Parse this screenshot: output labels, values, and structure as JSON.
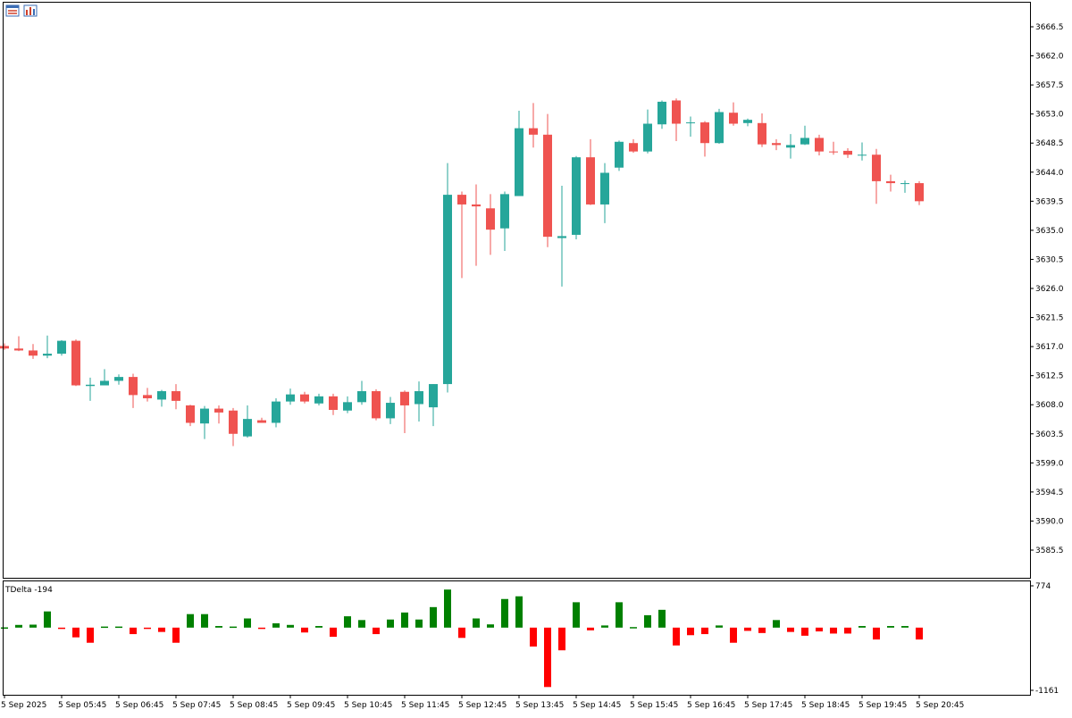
{
  "toolbar": {
    "icons": [
      "chart-properties-icon",
      "indicator-list-icon"
    ]
  },
  "indicator": {
    "label": "TDelta -194"
  },
  "colors": {
    "bull": "#26a69a",
    "bear": "#ef5350",
    "delta_pos": "#008000",
    "delta_neg": "#ff0000",
    "frame": "#000000",
    "background": "#ffffff"
  },
  "chart_data": [
    {
      "type": "candlestick",
      "title": "",
      "ylim": [
        3580.5,
        3670.0
      ],
      "y_ticks": [
        "3666.5",
        "3662.0",
        "3657.5",
        "3653.0",
        "3648.5",
        "3644.0",
        "3639.5",
        "3635.0",
        "3630.5",
        "3626.0",
        "3621.5",
        "3617.0",
        "3612.5",
        "3608.0",
        "3603.5",
        "3599.0",
        "3594.5",
        "3590.0",
        "3585.5"
      ],
      "x_ticks": [
        "5 Sep 2025",
        "5 Sep 05:45",
        "5 Sep 06:45",
        "5 Sep 07:45",
        "5 Sep 08:45",
        "5 Sep 09:45",
        "5 Sep 10:45",
        "5 Sep 11:45",
        "5 Sep 12:45",
        "5 Sep 13:45",
        "5 Sep 14:45",
        "5 Sep 15:45",
        "5 Sep 16:45",
        "5 Sep 17:45",
        "5 Sep 18:45",
        "5 Sep 19:45",
        "5 Sep 20:45"
      ],
      "candles": [
        {
          "o": 3617.1,
          "h": 3617.5,
          "l": 3616.5,
          "c": 3616.7
        },
        {
          "o": 3616.7,
          "h": 3618.6,
          "l": 3616.3,
          "c": 3616.4
        },
        {
          "o": 3616.4,
          "h": 3617.4,
          "l": 3615.1,
          "c": 3615.6
        },
        {
          "o": 3615.6,
          "h": 3618.7,
          "l": 3615.2,
          "c": 3615.9
        },
        {
          "o": 3615.9,
          "h": 3618.0,
          "l": 3615.6,
          "c": 3617.9
        },
        {
          "o": 3617.9,
          "h": 3618.1,
          "l": 3610.9,
          "c": 3611.0
        },
        {
          "o": 3610.9,
          "h": 3612.2,
          "l": 3608.6,
          "c": 3611.1
        },
        {
          "o": 3611.0,
          "h": 3613.5,
          "l": 3611.0,
          "c": 3611.7
        },
        {
          "o": 3611.7,
          "h": 3612.7,
          "l": 3611.1,
          "c": 3612.3
        },
        {
          "o": 3612.3,
          "h": 3612.8,
          "l": 3607.5,
          "c": 3609.5
        },
        {
          "o": 3609.5,
          "h": 3610.6,
          "l": 3608.5,
          "c": 3609.0
        },
        {
          "o": 3608.8,
          "h": 3610.3,
          "l": 3607.7,
          "c": 3610.1
        },
        {
          "o": 3610.1,
          "h": 3611.2,
          "l": 3607.3,
          "c": 3608.6
        },
        {
          "o": 3607.9,
          "h": 3608.0,
          "l": 3604.7,
          "c": 3605.2
        },
        {
          "o": 3605.1,
          "h": 3607.8,
          "l": 3602.7,
          "c": 3607.4
        },
        {
          "o": 3607.4,
          "h": 3607.9,
          "l": 3605.1,
          "c": 3606.8
        },
        {
          "o": 3607.1,
          "h": 3607.5,
          "l": 3601.6,
          "c": 3603.5
        },
        {
          "o": 3603.1,
          "h": 3607.9,
          "l": 3602.9,
          "c": 3605.8
        },
        {
          "o": 3605.6,
          "h": 3606.0,
          "l": 3605.2,
          "c": 3605.2
        },
        {
          "o": 3605.2,
          "h": 3609.0,
          "l": 3604.5,
          "c": 3608.5
        },
        {
          "o": 3608.5,
          "h": 3610.5,
          "l": 3608.0,
          "c": 3609.6
        },
        {
          "o": 3609.6,
          "h": 3610.0,
          "l": 3608.2,
          "c": 3608.5
        },
        {
          "o": 3608.2,
          "h": 3609.7,
          "l": 3607.9,
          "c": 3609.3
        },
        {
          "o": 3609.3,
          "h": 3609.7,
          "l": 3606.4,
          "c": 3607.2
        },
        {
          "o": 3607.1,
          "h": 3609.3,
          "l": 3606.7,
          "c": 3608.4
        },
        {
          "o": 3608.4,
          "h": 3611.7,
          "l": 3608.0,
          "c": 3610.1
        },
        {
          "o": 3610.1,
          "h": 3610.4,
          "l": 3605.6,
          "c": 3605.9
        },
        {
          "o": 3605.9,
          "h": 3609.2,
          "l": 3605.0,
          "c": 3608.3
        },
        {
          "o": 3610.0,
          "h": 3610.2,
          "l": 3603.6,
          "c": 3607.9
        },
        {
          "o": 3608.1,
          "h": 3611.6,
          "l": 3605.4,
          "c": 3610.1
        },
        {
          "o": 3607.6,
          "h": 3611.2,
          "l": 3604.7,
          "c": 3611.2
        },
        {
          "o": 3611.2,
          "h": 3645.4,
          "l": 3609.9,
          "c": 3640.5
        },
        {
          "o": 3640.5,
          "h": 3641.0,
          "l": 3627.6,
          "c": 3639.0
        },
        {
          "o": 3639.0,
          "h": 3642.1,
          "l": 3629.5,
          "c": 3638.7
        },
        {
          "o": 3638.4,
          "h": 3640.6,
          "l": 3631.2,
          "c": 3635.1
        },
        {
          "o": 3635.3,
          "h": 3641.0,
          "l": 3631.8,
          "c": 3640.6
        },
        {
          "o": 3640.3,
          "h": 3653.5,
          "l": 3640.3,
          "c": 3650.8
        },
        {
          "o": 3650.8,
          "h": 3654.7,
          "l": 3647.8,
          "c": 3649.8
        },
        {
          "o": 3649.8,
          "h": 3653.0,
          "l": 3632.4,
          "c": 3634.0
        },
        {
          "o": 3633.8,
          "h": 3641.9,
          "l": 3626.3,
          "c": 3634.1
        },
        {
          "o": 3634.3,
          "h": 3646.5,
          "l": 3633.6,
          "c": 3646.3
        },
        {
          "o": 3646.3,
          "h": 3649.1,
          "l": 3638.9,
          "c": 3639.0
        },
        {
          "o": 3639.0,
          "h": 3645.4,
          "l": 3636.1,
          "c": 3643.9
        },
        {
          "o": 3644.7,
          "h": 3648.9,
          "l": 3644.2,
          "c": 3648.7
        },
        {
          "o": 3648.5,
          "h": 3649.1,
          "l": 3647.0,
          "c": 3647.2
        },
        {
          "o": 3647.2,
          "h": 3653.7,
          "l": 3646.9,
          "c": 3651.5
        },
        {
          "o": 3651.4,
          "h": 3655.1,
          "l": 3650.7,
          "c": 3654.9
        },
        {
          "o": 3655.1,
          "h": 3655.4,
          "l": 3648.8,
          "c": 3651.5
        },
        {
          "o": 3651.7,
          "h": 3652.6,
          "l": 3649.5,
          "c": 3651.7
        },
        {
          "o": 3651.7,
          "h": 3651.9,
          "l": 3646.4,
          "c": 3648.5
        },
        {
          "o": 3648.5,
          "h": 3653.8,
          "l": 3648.4,
          "c": 3653.3
        },
        {
          "o": 3653.2,
          "h": 3654.8,
          "l": 3651.2,
          "c": 3651.5
        },
        {
          "o": 3651.6,
          "h": 3652.3,
          "l": 3651.1,
          "c": 3652.1
        },
        {
          "o": 3651.6,
          "h": 3653.1,
          "l": 3647.9,
          "c": 3648.3
        },
        {
          "o": 3648.5,
          "h": 3649.1,
          "l": 3647.4,
          "c": 3648.2
        },
        {
          "o": 3647.8,
          "h": 3649.9,
          "l": 3646.1,
          "c": 3648.2
        },
        {
          "o": 3648.3,
          "h": 3651.2,
          "l": 3648.2,
          "c": 3649.3
        },
        {
          "o": 3649.3,
          "h": 3649.8,
          "l": 3646.6,
          "c": 3647.2
        },
        {
          "o": 3647.2,
          "h": 3648.7,
          "l": 3646.7,
          "c": 3647.1
        },
        {
          "o": 3647.3,
          "h": 3647.7,
          "l": 3646.2,
          "c": 3646.7
        },
        {
          "o": 3646.6,
          "h": 3648.6,
          "l": 3645.8,
          "c": 3646.7
        },
        {
          "o": 3646.7,
          "h": 3647.6,
          "l": 3639.1,
          "c": 3642.6
        },
        {
          "o": 3642.6,
          "h": 3643.6,
          "l": 3641.0,
          "c": 3642.3
        },
        {
          "o": 3642.2,
          "h": 3642.7,
          "l": 3640.8,
          "c": 3642.3
        },
        {
          "o": 3642.3,
          "h": 3642.6,
          "l": 3638.9,
          "c": 3639.5
        }
      ]
    },
    {
      "type": "bar",
      "title": "TDelta -194",
      "ylim": [
        -1161,
        774
      ],
      "y_ticks": [
        "774",
        "-1161"
      ],
      "values": [
        5,
        50,
        55,
        300,
        -20,
        -180,
        -280,
        20,
        20,
        -120,
        -20,
        -80,
        -280,
        250,
        250,
        30,
        20,
        170,
        -20,
        80,
        50,
        -90,
        30,
        -170,
        210,
        140,
        -120,
        150,
        280,
        150,
        380,
        705,
        -190,
        170,
        60,
        530,
        580,
        -350,
        -1100,
        -420,
        470,
        -50,
        40,
        470,
        10,
        230,
        330,
        -330,
        -140,
        -120,
        40,
        -280,
        -60,
        -100,
        140,
        -80,
        -150,
        -70,
        -110,
        -110,
        30,
        -220,
        30,
        30,
        -220
      ]
    }
  ]
}
